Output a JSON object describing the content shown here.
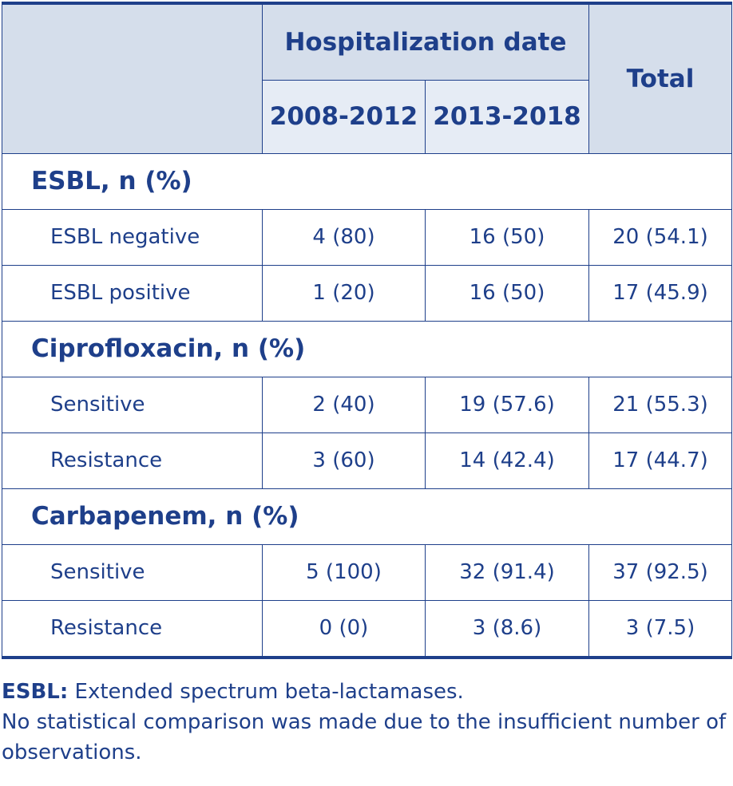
{
  "header": {
    "group_label": "Hospitalization date",
    "col_2008": "2008-2012",
    "col_2013": "2013-2018",
    "col_total": "Total"
  },
  "sections": [
    {
      "title": "ESBL, n (%)",
      "rows": [
        {
          "label": "ESBL negative",
          "v1": "4 (80)",
          "v2": "16 (50)",
          "total": "20 (54.1)"
        },
        {
          "label": "ESBL positive",
          "v1": "1 (20)",
          "v2": "16 (50)",
          "total": "17 (45.9)"
        }
      ]
    },
    {
      "title": "Ciprofloxacin, n (%)",
      "rows": [
        {
          "label": "Sensitive",
          "v1": "2 (40)",
          "v2": "19 (57.6)",
          "total": "21 (55.3)"
        },
        {
          "label": "Resistance",
          "v1": "3 (60)",
          "v2": "14 (42.4)",
          "total": "17 (44.7)"
        }
      ]
    },
    {
      "title": "Carbapenem, n (%)",
      "rows": [
        {
          "label": "Sensitive",
          "v1": "5 (100)",
          "v2": "32 (91.4)",
          "total": "37 (92.5)"
        },
        {
          "label": "Resistance",
          "v1": "0 (0)",
          "v2": "3 (8.6)",
          "total": "3 (7.5)"
        }
      ]
    }
  ],
  "footnotes": {
    "abbr_term": "ESBL:",
    "abbr_text": " Extended spectrum beta-lactamases.",
    "note": "No statistical comparison was made due to the insufficient number of observations."
  }
}
